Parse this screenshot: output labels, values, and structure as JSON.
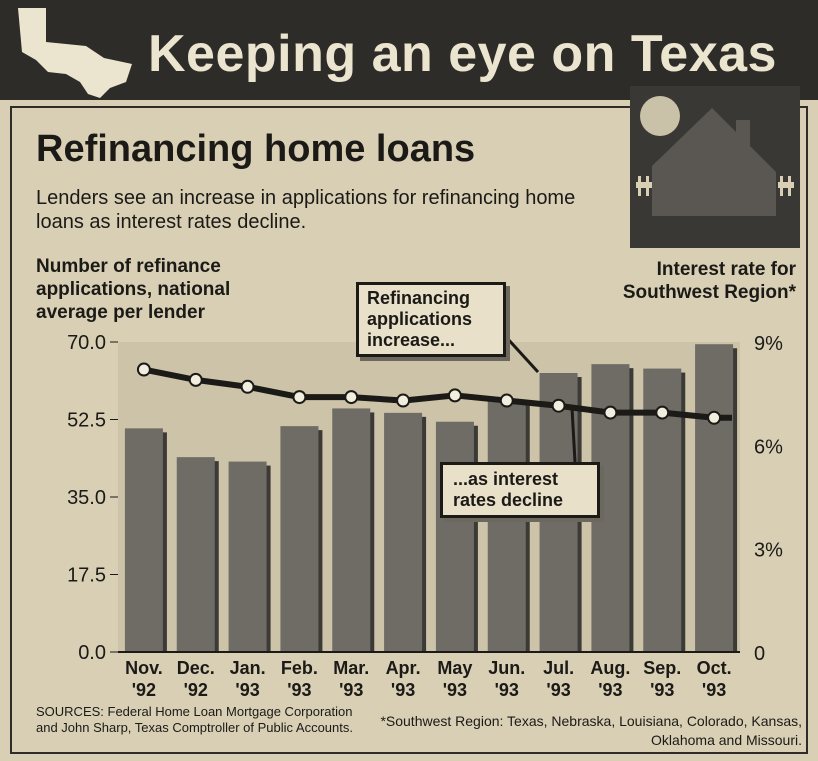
{
  "banner": {
    "title": "Keeping an eye on Texas"
  },
  "header": {
    "title": "Refinancing home loans",
    "subtitle": "Lenders see an increase in applications for refinancing home loans as interest rates decline."
  },
  "axes": {
    "left_label": "Number of refinance applications, national average per lender",
    "right_label": "Interest rate for Southwest Region*"
  },
  "callouts": {
    "top": "Refinancing applications increase...",
    "bottom": "...as interest rates decline"
  },
  "footer": {
    "sources": "SOURCES: Federal Home Loan Mortgage Corporation and John Sharp, Texas Comptroller of Public Accounts.",
    "footnote": "*Southwest Region: Texas, Nebraska, Louisiana, Colorado, Kansas, Oklahoma and Missouri."
  },
  "colors": {
    "bar": "#6f6c66",
    "bar_shadow": "#3c3a36",
    "line": "#1b1a17",
    "marker": "#f2eedf",
    "panel": "#2e2c28"
  },
  "chart_data": {
    "type": "bar",
    "categories": [
      [
        "Nov.",
        "'92"
      ],
      [
        "Dec.",
        "'92"
      ],
      [
        "Jan.",
        "'93"
      ],
      [
        "Feb.",
        "'93"
      ],
      [
        "Mar.",
        "'93"
      ],
      [
        "Apr.",
        "'93"
      ],
      [
        "May",
        "'93"
      ],
      [
        "Jun.",
        "'93"
      ],
      [
        "Jul.",
        "'93"
      ],
      [
        "Aug.",
        "'93"
      ],
      [
        "Sep.",
        "'93"
      ],
      [
        "Oct.",
        "'93"
      ]
    ],
    "series": [
      {
        "values": [
          50.5,
          44,
          43,
          51,
          55,
          54,
          52,
          57,
          63,
          65,
          64,
          69.5
        ],
        "axis": "left"
      },
      {
        "values": [
          8.2,
          7.9,
          7.7,
          7.4,
          7.4,
          7.3,
          7.45,
          7.3,
          7.15,
          6.95,
          6.95,
          6.8
        ],
        "axis": "right"
      }
    ],
    "left_axis": {
      "ticks": [
        "70.0",
        "52.5",
        "35.0",
        "17.5",
        "0.0"
      ],
      "range": [
        0,
        70
      ]
    },
    "right_axis": {
      "ticks": [
        "9%",
        "6%",
        "3%",
        "0"
      ],
      "range": [
        0,
        9
      ]
    }
  }
}
